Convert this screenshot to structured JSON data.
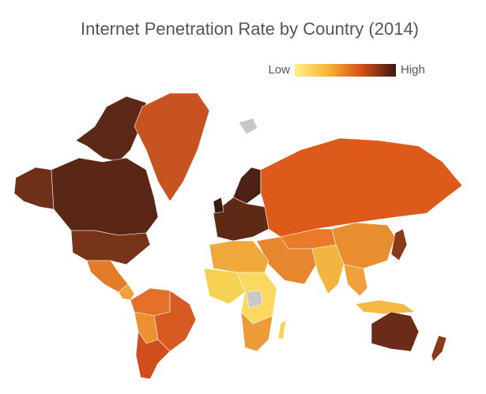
{
  "title": "Internet Penetration Rate by Country (2014)",
  "legend": {
    "low": "Low",
    "high": "High"
  }
}
